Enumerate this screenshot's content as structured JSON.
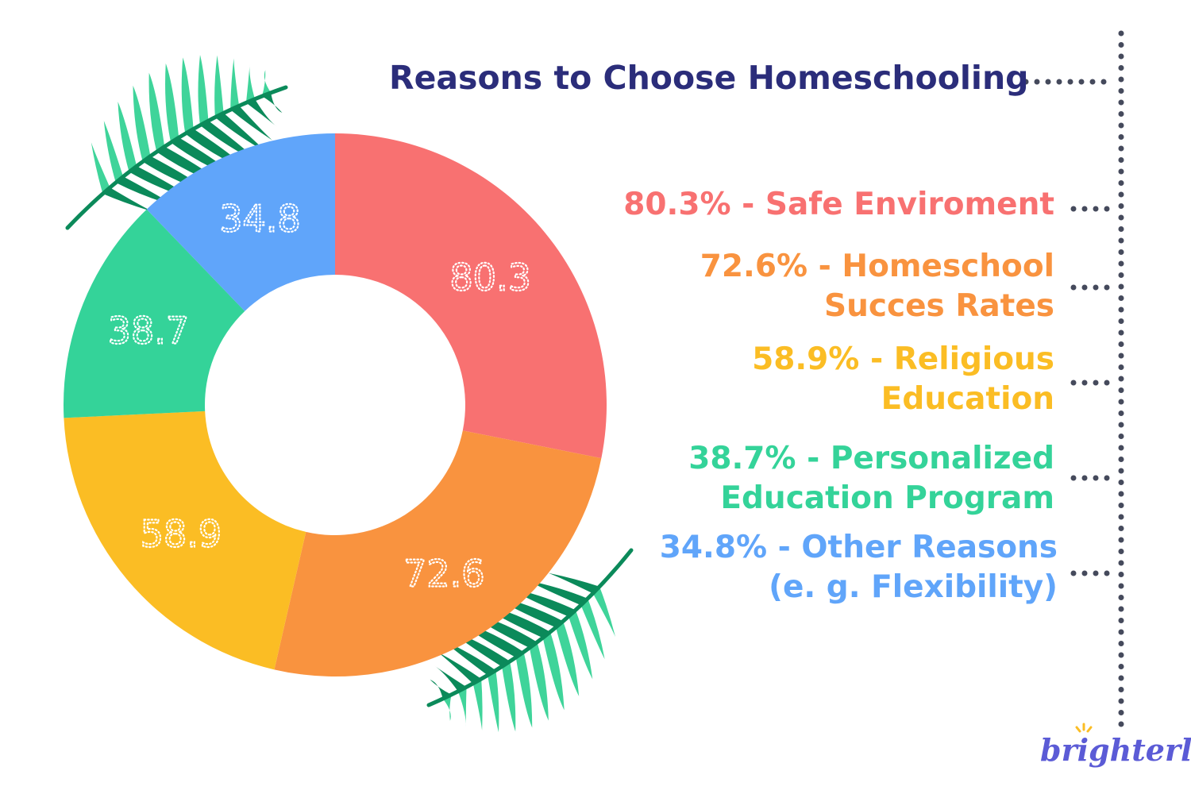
{
  "title": "Reasons to Choose Homeschooling",
  "brand": "brighterly",
  "colors": {
    "title": "#2b2d7a",
    "dots": "#454a5c",
    "leaf_dark": "#0b8a5a",
    "leaf_light": "#3fd49a"
  },
  "legend": [
    {
      "line1": "80.3% - Safe Enviroment",
      "line2": "",
      "color": "#f87171"
    },
    {
      "line1": "72.6% - Homeschool",
      "line2": "Succes Rates",
      "color": "#f9933f"
    },
    {
      "line1": "58.9% - Religious",
      "line2": "Education",
      "color": "#fbbd24"
    },
    {
      "line1": "38.7% - Personalized",
      "line2": "Education Program",
      "color": "#34d399"
    },
    {
      "line1": "34.8% - Other Reasons",
      "line2": "(e. g. Flexibility)",
      "color": "#60a5fa"
    }
  ],
  "chart_data": {
    "type": "pie",
    "donut": true,
    "title": "Reasons to Choose Homeschooling",
    "categories": [
      "Safe Enviroment",
      "Homeschool Succes Rates",
      "Religious Education",
      "Personalized Education Program",
      "Other Reasons (e. g. Flexibility)"
    ],
    "values": [
      80.3,
      72.6,
      58.9,
      38.7,
      34.8
    ],
    "data_labels": [
      "80.3",
      "72.6",
      "58.9",
      "38.7",
      "34.8"
    ],
    "colors": [
      "#f87171",
      "#f9933f",
      "#fbbd24",
      "#34d399",
      "#60a5fa"
    ],
    "legend_position": "right"
  }
}
